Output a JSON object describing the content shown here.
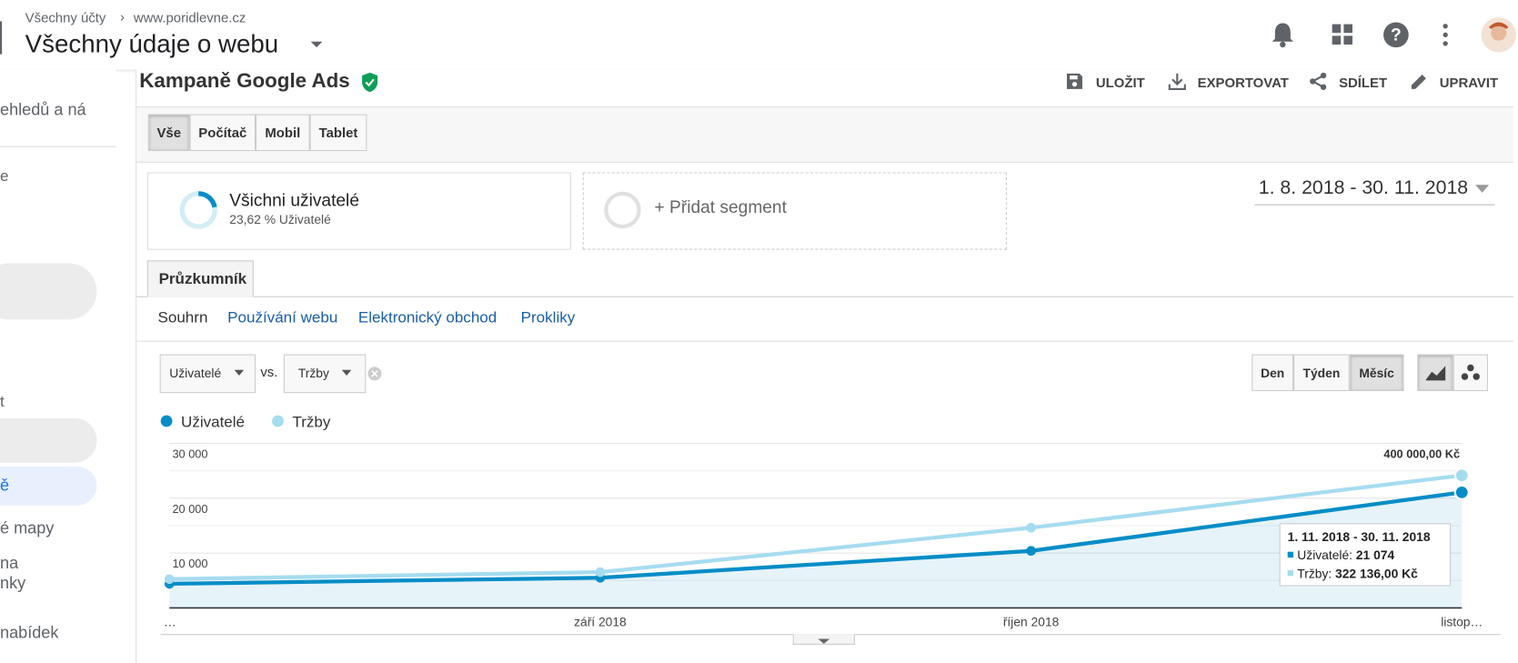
{
  "header": {
    "breadcrumb": [
      "Všechny účty",
      "www.poridlevne.cz"
    ],
    "title": "Všechny údaje o webu"
  },
  "sidebar": [
    "ehledů a ná",
    "e",
    "t",
    "ě",
    "é mapy",
    "na",
    "nky",
    "nabídek"
  ],
  "report": {
    "title": "Kampaně Google Ads",
    "actions": [
      "ULOŽIT",
      "EXPORTOVAT",
      "SDÍLET",
      "UPRAVIT"
    ]
  },
  "devices": [
    "Vše",
    "Počítač",
    "Mobil",
    "Tablet"
  ],
  "segments": {
    "active": {
      "name": "Všichni uživatelé",
      "detail": "23,62 % Uživatelé"
    },
    "add": "+ Přidat segment"
  },
  "date_range": "1. 8. 2018 - 30. 11. 2018",
  "tab": "Průzkumník",
  "subtabs": [
    "Souhrn",
    "Používání webu",
    "Elektronický obchod",
    "Prokliky"
  ],
  "metric_picker": {
    "primary": "Uživatelé",
    "vs": "vs.",
    "secondary": "Tržby"
  },
  "granularity": [
    "Den",
    "Týden",
    "Měsíc"
  ],
  "chart_data": {
    "type": "line",
    "categories": [
      "…",
      "září 2018",
      "říjen 2018",
      "listop…"
    ],
    "series": [
      {
        "name": "Uživatelé",
        "color": "#058dc7",
        "values": [
          4400,
          5500,
          10400,
          21074
        ],
        "value_labels": [
          null,
          null,
          null,
          "21 074"
        ]
      },
      {
        "name": "Tržby",
        "color": "#a6dcef",
        "axis": "y2",
        "values": [
          70000,
          87000,
          195000,
          322136
        ],
        "value_labels": [
          null,
          null,
          null,
          "322 136,00 Kč"
        ]
      }
    ],
    "ylim": [
      0,
      30000
    ],
    "yticks": [
      {
        "value": 10000,
        "label": "10 000"
      },
      {
        "value": 20000,
        "label": "20 000"
      },
      {
        "value": 30000,
        "label": "30 000"
      }
    ],
    "y2lim": [
      0,
      400000
    ],
    "y2ticks": [
      {
        "value": 400000,
        "label": "400 000,00 Kč"
      }
    ],
    "grid": true,
    "area": true,
    "tooltip": {
      "title": "1. 11. 2018 - 30. 11. 2018",
      "labels": [
        "Uživatelé:",
        "Tržby:"
      ]
    }
  }
}
